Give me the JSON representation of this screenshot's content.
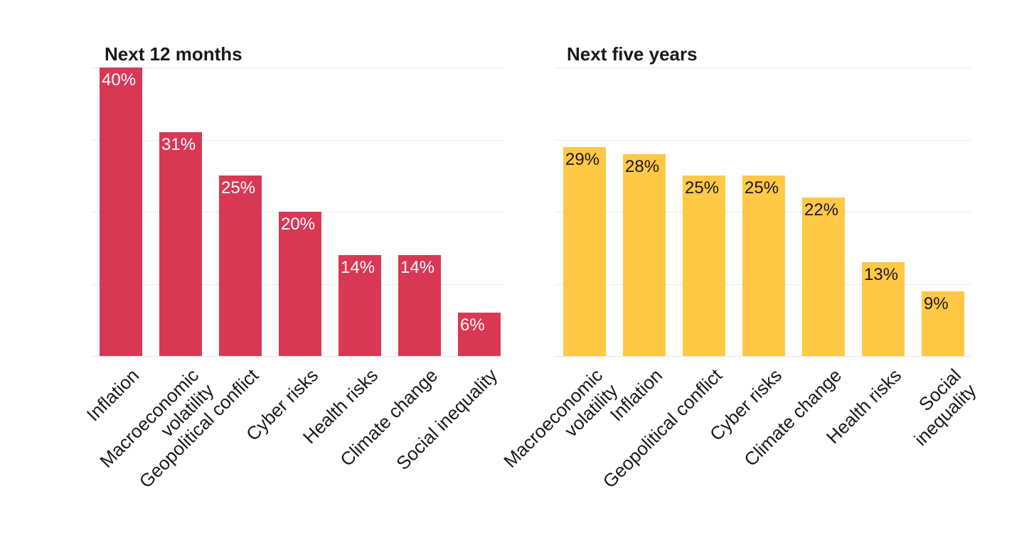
{
  "chart_data": [
    {
      "type": "bar",
      "title": "Next 12 months",
      "categories": [
        "Inflation",
        "Macroeconomic\nvolatility",
        "Geopolitical conflict",
        "Cyber risks",
        "Health risks",
        "Climate change",
        "Social inequality"
      ],
      "values": [
        40,
        31,
        25,
        20,
        14,
        14,
        6
      ],
      "value_labels": [
        "40%",
        "31%",
        "25%",
        "20%",
        "14%",
        "14%",
        "6%"
      ],
      "unit": "%",
      "ylim": [
        0,
        40
      ],
      "grid_step": 10,
      "grid": true,
      "legend": false,
      "y_axis_tick_labels": false,
      "xlabel": "",
      "ylabel": "",
      "bar_color": "#d93855",
      "value_label_color": "#ffffff",
      "axis_label_color": "#1a1a1a",
      "title_color": "#1a1a1a",
      "gridline_color": "#ededed"
    },
    {
      "type": "bar",
      "title": "Next five years",
      "categories": [
        "Macroeconomic\nvolatility",
        "Inflation",
        "Geopolitical conflict",
        "Cyber risks",
        "Climate change",
        "Health risks",
        "Social inequality"
      ],
      "values": [
        29,
        28,
        25,
        25,
        22,
        13,
        9
      ],
      "value_labels": [
        "29%",
        "28%",
        "25%",
        "25%",
        "22%",
        "13%",
        "9%"
      ],
      "unit": "%",
      "ylim": [
        0,
        40
      ],
      "grid_step": 10,
      "grid": true,
      "legend": false,
      "y_axis_tick_labels": false,
      "xlabel": "",
      "ylabel": "",
      "bar_color": "#ffc845",
      "value_label_color": "#1a1a1a",
      "axis_label_color": "#1a1a1a",
      "title_color": "#1a1a1a",
      "gridline_color": "#ededed"
    }
  ]
}
